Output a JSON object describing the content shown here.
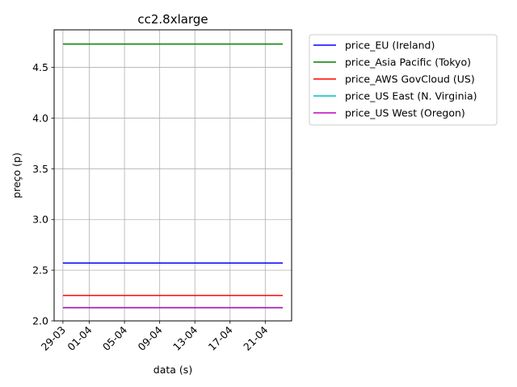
{
  "chart_data": {
    "type": "line",
    "title": "cc2.8xlarge",
    "xlabel": "data (s)",
    "ylabel": "preço (p)",
    "x_range": [
      "2014-03-28",
      "2014-04-24"
    ],
    "x_data_range": [
      "2014-03-29",
      "2014-04-23"
    ],
    "x_ticks": [
      "2014-03-29",
      "2014-04-01",
      "2014-04-05",
      "2014-04-09",
      "2014-04-13",
      "2014-04-17",
      "2014-04-21"
    ],
    "x_tick_labels": [
      "29-03",
      "01-04",
      "05-04",
      "09-04",
      "13-04",
      "17-04",
      "21-04"
    ],
    "ylim": [
      2.0,
      4.87
    ],
    "y_ticks": [
      2.0,
      2.5,
      3.0,
      3.5,
      4.0,
      4.5
    ],
    "y_tick_labels": [
      "2.0",
      "2.5",
      "3.0",
      "3.5",
      "4.0",
      "4.5"
    ],
    "grid": true,
    "legend_position": "outside-top-right",
    "series": [
      {
        "name": "price_EU (Ireland)",
        "color": "#0000ff",
        "value": 2.57
      },
      {
        "name": "price_Asia Pacific (Tokyo)",
        "color": "#008000",
        "value": 4.73
      },
      {
        "name": "price_AWS GovCloud (US)",
        "color": "#ff0000",
        "value": 2.25
      },
      {
        "name": "price_US East (N. Virginia)",
        "color": "#00bfbf",
        "value": 2.13
      },
      {
        "name": "price_US West (Oregon)",
        "color": "#bf00bf",
        "value": 2.13
      }
    ]
  }
}
